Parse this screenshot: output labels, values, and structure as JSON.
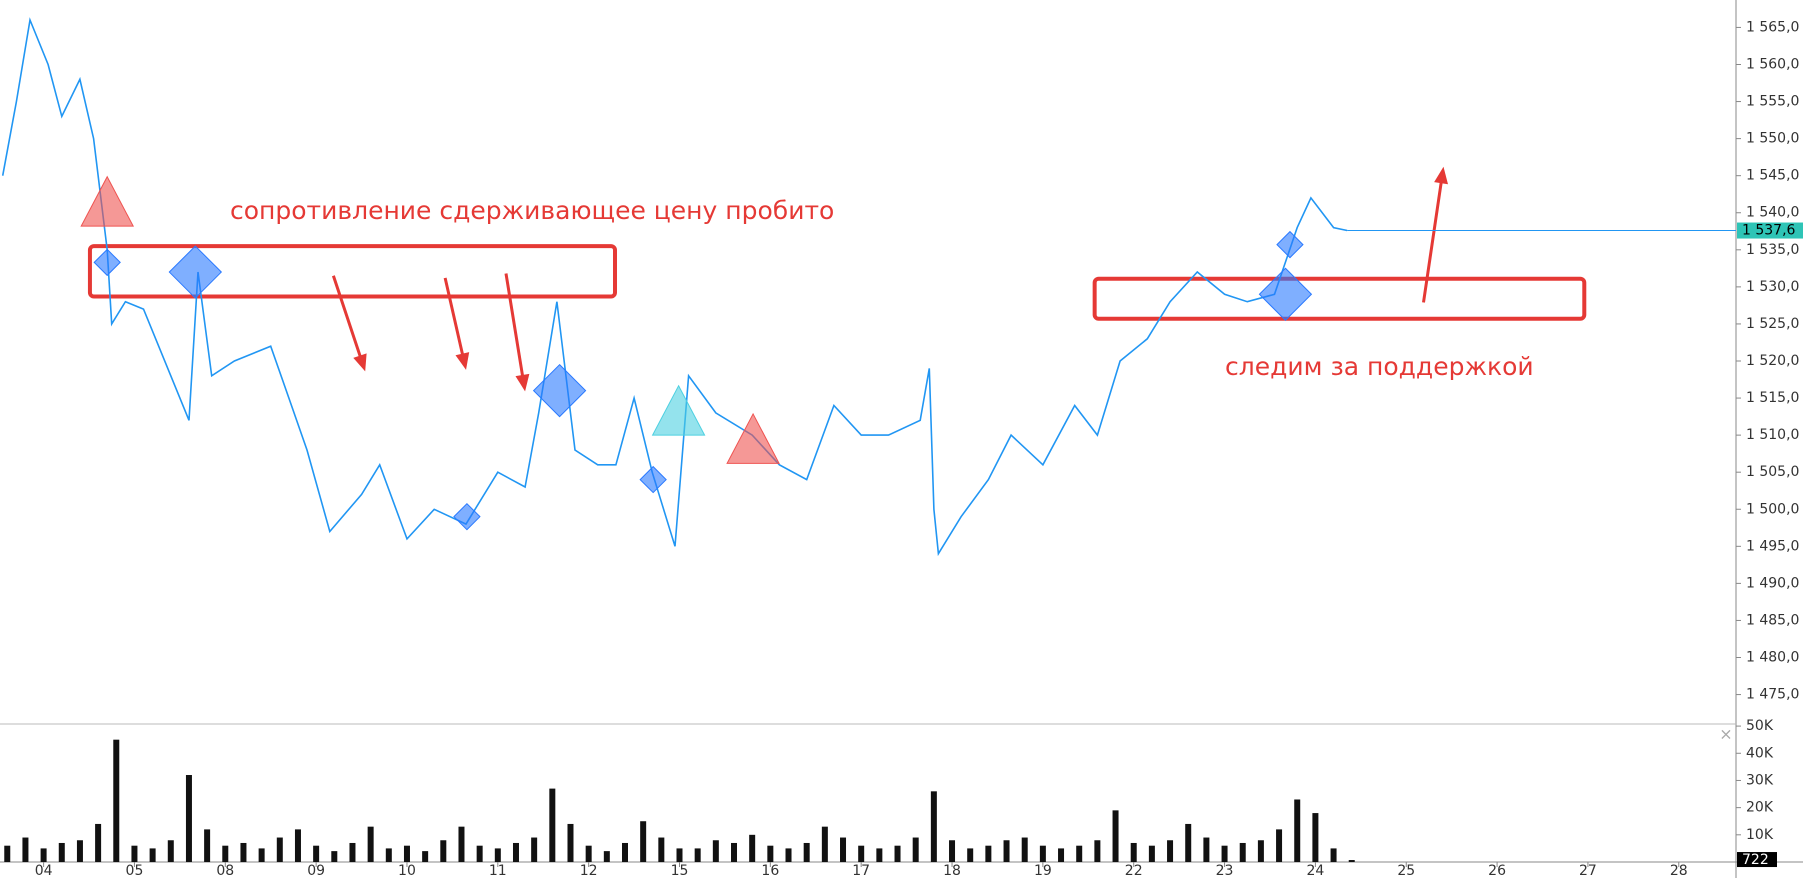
{
  "chart_data": [
    {
      "type": "line",
      "x": [
        -0.45,
        -0.3,
        -0.15,
        0.05,
        0.2,
        0.4,
        0.55,
        0.7,
        0.75,
        0.9,
        1.1,
        1.4,
        1.6,
        1.7,
        1.85,
        2.1,
        2.5,
        2.7,
        2.9,
        3.15,
        3.5,
        3.7,
        4.0,
        4.3,
        4.65,
        5.0,
        5.3,
        5.45,
        5.65,
        5.85,
        6.1,
        6.3,
        6.5,
        6.7,
        6.95,
        7.1,
        7.4,
        7.8,
        8.1,
        8.4,
        8.7,
        9.0,
        9.3,
        9.65,
        9.75,
        9.8,
        9.85,
        10.1,
        10.4,
        10.65,
        11.0,
        11.35,
        11.6,
        11.85,
        12.15,
        12.4,
        12.7,
        13.0,
        13.25,
        13.55,
        13.8,
        13.95,
        14.2,
        14.35
      ],
      "values": [
        1545,
        1555,
        1566,
        1560,
        1553,
        1558,
        1550,
        1535,
        1525,
        1528,
        1527,
        1518,
        1512,
        1532,
        1518,
        1520,
        1522,
        1515,
        1508,
        1497,
        1502,
        1506,
        1496,
        1500,
        1498,
        1505,
        1503,
        1513,
        1528,
        1508,
        1506,
        1506,
        1515,
        1505,
        1495,
        1518,
        1513,
        1510,
        1506,
        1504,
        1514,
        1510,
        1510,
        1512,
        1519,
        1500,
        1494,
        1499,
        1504,
        1510,
        1506,
        1514,
        1510,
        1520,
        1523,
        1528,
        1532,
        1529,
        1528,
        1529,
        1538,
        1542,
        1538,
        1537.6
      ],
      "color": "#2196f3",
      "xlim": [
        -0.48,
        18.63
      ],
      "ylim": [
        1471.3,
        1568.7
      ],
      "yticks": [
        {
          "value": 1475,
          "label": "1 475,0"
        },
        {
          "value": 1480,
          "label": "1 480,0"
        },
        {
          "value": 1485,
          "label": "1 485,0"
        },
        {
          "value": 1490,
          "label": "1 490,0"
        },
        {
          "value": 1495,
          "label": "1 495,0"
        },
        {
          "value": 1500,
          "label": "1 500,0"
        },
        {
          "value": 1505,
          "label": "1 505,0"
        },
        {
          "value": 1510,
          "label": "1 510,0"
        },
        {
          "value": 1515,
          "label": "1 515,0"
        },
        {
          "value": 1520,
          "label": "1 520,0"
        },
        {
          "value": 1525,
          "label": "1 525,0"
        },
        {
          "value": 1530,
          "label": "1 530,0"
        },
        {
          "value": 1535,
          "label": "1 535,0"
        },
        {
          "value": 1540,
          "label": "1 540,0"
        },
        {
          "value": 1545,
          "label": "1 545,0"
        },
        {
          "value": 1550,
          "label": "1 550,0"
        },
        {
          "value": 1555,
          "label": "1 555,0"
        },
        {
          "value": 1560,
          "label": "1 560,0"
        },
        {
          "value": 1565,
          "label": "1 565,0"
        }
      ],
      "current_price": {
        "value": 1537.6,
        "label": "1 537,6"
      },
      "annotations": [
        "сопротивление сдерживающее цену пробито",
        "следим за поддержкой"
      ],
      "zones": [
        {
          "x0": 0.51,
          "x1": 6.29,
          "y0": 1528.7,
          "y1": 1535.5
        },
        {
          "x0": 11.57,
          "x1": 16.96,
          "y0": 1525.7,
          "y1": 1531.1
        }
      ],
      "arrows": [
        {
          "x0": 3.19,
          "y0": 1531.5,
          "x1": 3.54,
          "y1": 1518.6
        },
        {
          "x0": 4.42,
          "y0": 1531.2,
          "x1": 4.65,
          "y1": 1518.8
        },
        {
          "x0": 5.09,
          "y0": 1531.8,
          "x1": 5.3,
          "y1": 1515.9
        },
        {
          "x0": 15.19,
          "y0": 1527.9,
          "x1": 15.41,
          "y1": 1546.2
        }
      ],
      "markers": [
        {
          "shape": "triangle",
          "color": "#ef5350",
          "size": "large",
          "x": 0.7,
          "y": 1541
        },
        {
          "shape": "triangle",
          "color": "#ef5350",
          "size": "large",
          "x": 7.81,
          "y": 1509
        },
        {
          "shape": "triangle",
          "color": "#4dd0e1",
          "size": "large",
          "x": 6.99,
          "y": 1512.8
        },
        {
          "shape": "diamond",
          "color": "#2979ff",
          "size": "small",
          "x": 0.7,
          "y": 1533.3
        },
        {
          "shape": "diamond",
          "color": "#2979ff",
          "size": "large",
          "x": 1.67,
          "y": 1532
        },
        {
          "shape": "diamond",
          "color": "#2979ff",
          "size": "large",
          "x": 5.68,
          "y": 1516
        },
        {
          "shape": "diamond",
          "color": "#2979ff",
          "size": "small",
          "x": 6.71,
          "y": 1504
        },
        {
          "shape": "diamond",
          "color": "#2979ff",
          "size": "small",
          "x": 4.66,
          "y": 1499
        },
        {
          "shape": "diamond",
          "color": "#2979ff",
          "size": "large",
          "x": 13.67,
          "y": 1529
        },
        {
          "shape": "diamond",
          "color": "#2979ff",
          "size": "small",
          "x": 13.72,
          "y": 1535.7
        }
      ]
    },
    {
      "type": "bar",
      "x": [
        -0.4,
        -0.2,
        0,
        0.2,
        0.4,
        0.6,
        0.8,
        1.0,
        1.2,
        1.4,
        1.6,
        1.8,
        2.0,
        2.2,
        2.4,
        2.6,
        2.8,
        3.0,
        3.2,
        3.4,
        3.6,
        3.8,
        4.0,
        4.2,
        4.4,
        4.6,
        4.8,
        5.0,
        5.2,
        5.4,
        5.6,
        5.8,
        6.0,
        6.2,
        6.4,
        6.6,
        6.8,
        7.0,
        7.2,
        7.4,
        7.6,
        7.8,
        8.0,
        8.2,
        8.4,
        8.6,
        8.8,
        9.0,
        9.2,
        9.4,
        9.6,
        9.8,
        10.0,
        10.2,
        10.4,
        10.6,
        10.8,
        11.0,
        11.2,
        11.4,
        11.6,
        11.8,
        12.0,
        12.2,
        12.4,
        12.6,
        12.8,
        13.0,
        13.2,
        13.4,
        13.6,
        13.8,
        14.0,
        14.2,
        14.4
      ],
      "values": [
        6000,
        9000,
        5000,
        7000,
        8000,
        14000,
        45000,
        6000,
        5000,
        8000,
        32000,
        12000,
        6000,
        7000,
        5000,
        9000,
        12000,
        6000,
        4000,
        7000,
        13000,
        5000,
        6000,
        4000,
        8000,
        13000,
        6000,
        5000,
        7000,
        9000,
        27000,
        14000,
        6000,
        4000,
        7000,
        15000,
        9000,
        5000,
        5000,
        8000,
        7000,
        10000,
        6000,
        5000,
        7000,
        13000,
        9000,
        6000,
        5000,
        6000,
        9000,
        26000,
        8000,
        5000,
        6000,
        8000,
        9000,
        6000,
        5000,
        6000,
        8000,
        19000,
        7000,
        6000,
        8000,
        14000,
        9000,
        6000,
        7000,
        8000,
        12000,
        23000,
        18000,
        5000,
        722
      ],
      "color": "#111111",
      "xlim": [
        -0.48,
        18.63
      ],
      "ylim": [
        0,
        50400
      ],
      "yticks": [
        {
          "value": 10000,
          "label": "10K"
        },
        {
          "value": 20000,
          "label": "20K"
        },
        {
          "value": 30000,
          "label": "30K"
        },
        {
          "value": 40000,
          "label": "40K"
        },
        {
          "value": 50000,
          "label": "50K"
        }
      ],
      "xticks": [
        {
          "value": 0,
          "label": "04"
        },
        {
          "value": 1,
          "label": "05"
        },
        {
          "value": 2,
          "label": "08"
        },
        {
          "value": 3,
          "label": "09"
        },
        {
          "value": 4,
          "label": "10"
        },
        {
          "value": 5,
          "label": "11"
        },
        {
          "value": 6,
          "label": "12"
        },
        {
          "value": 7,
          "label": "15"
        },
        {
          "value": 8,
          "label": "16"
        },
        {
          "value": 9,
          "label": "17"
        },
        {
          "value": 10,
          "label": "18"
        },
        {
          "value": 11,
          "label": "19"
        },
        {
          "value": 12,
          "label": "22"
        },
        {
          "value": 13,
          "label": "23"
        },
        {
          "value": 14,
          "label": "24"
        },
        {
          "value": 15,
          "label": "25"
        },
        {
          "value": 16,
          "label": "26"
        },
        {
          "value": 17,
          "label": "27"
        },
        {
          "value": 18,
          "label": "28"
        }
      ]
    }
  ]
}
